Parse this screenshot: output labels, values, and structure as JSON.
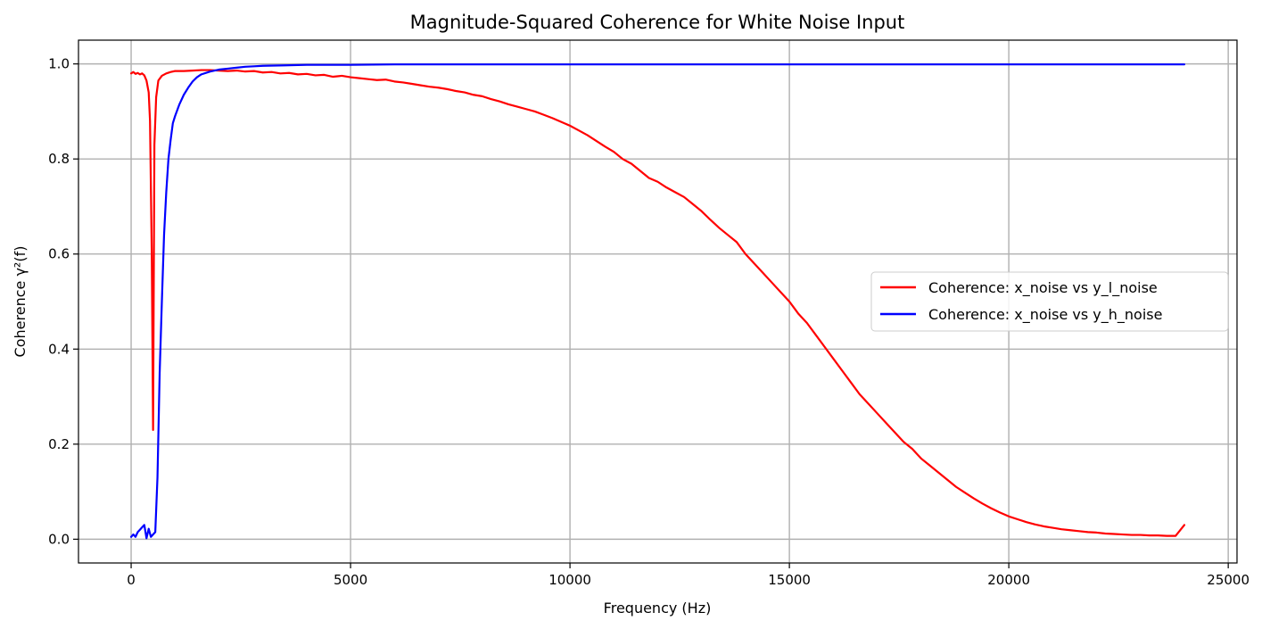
{
  "chart_data": {
    "type": "line",
    "title": "Magnitude-Squared Coherence for White Noise Input",
    "xlabel": "Frequency (Hz)",
    "ylabel": "Coherence γ²(f)",
    "xlim": [
      -1200,
      25200
    ],
    "ylim": [
      -0.05,
      1.05
    ],
    "xticks": [
      0,
      5000,
      10000,
      15000,
      20000,
      25000
    ],
    "xtick_labels": [
      "0",
      "5000",
      "10000",
      "15000",
      "20000",
      "25000"
    ],
    "yticks": [
      0.0,
      0.2,
      0.4,
      0.6,
      0.8,
      1.0
    ],
    "ytick_labels": [
      "0.0",
      "0.2",
      "0.4",
      "0.6",
      "0.8",
      "1.0"
    ],
    "grid": true,
    "legend_position": "center-right",
    "series": [
      {
        "name": "Coherence: x_noise vs y_l_noise",
        "color": "#ff0000",
        "points": [
          [
            0,
            0.98
          ],
          [
            50,
            0.983
          ],
          [
            100,
            0.979
          ],
          [
            150,
            0.981
          ],
          [
            200,
            0.978
          ],
          [
            250,
            0.98
          ],
          [
            300,
            0.976
          ],
          [
            350,
            0.965
          ],
          [
            400,
            0.94
          ],
          [
            430,
            0.88
          ],
          [
            470,
            0.6
          ],
          [
            500,
            0.23
          ],
          [
            530,
            0.83
          ],
          [
            570,
            0.93
          ],
          [
            620,
            0.965
          ],
          [
            700,
            0.975
          ],
          [
            800,
            0.98
          ],
          [
            900,
            0.983
          ],
          [
            1000,
            0.985
          ],
          [
            1200,
            0.985
          ],
          [
            1400,
            0.986
          ],
          [
            1600,
            0.987
          ],
          [
            1800,
            0.987
          ],
          [
            2000,
            0.986
          ],
          [
            2200,
            0.985
          ],
          [
            2400,
            0.986
          ],
          [
            2600,
            0.984
          ],
          [
            2800,
            0.985
          ],
          [
            3000,
            0.982
          ],
          [
            3200,
            0.983
          ],
          [
            3400,
            0.98
          ],
          [
            3600,
            0.981
          ],
          [
            3800,
            0.978
          ],
          [
            4000,
            0.979
          ],
          [
            4200,
            0.976
          ],
          [
            4400,
            0.977
          ],
          [
            4600,
            0.973
          ],
          [
            4800,
            0.975
          ],
          [
            5000,
            0.972
          ],
          [
            5200,
            0.97
          ],
          [
            5400,
            0.968
          ],
          [
            5600,
            0.966
          ],
          [
            5800,
            0.967
          ],
          [
            6000,
            0.963
          ],
          [
            6200,
            0.961
          ],
          [
            6400,
            0.958
          ],
          [
            6600,
            0.955
          ],
          [
            6800,
            0.952
          ],
          [
            7000,
            0.95
          ],
          [
            7200,
            0.947
          ],
          [
            7400,
            0.943
          ],
          [
            7600,
            0.94
          ],
          [
            7800,
            0.935
          ],
          [
            8000,
            0.932
          ],
          [
            8200,
            0.926
          ],
          [
            8400,
            0.921
          ],
          [
            8600,
            0.915
          ],
          [
            8800,
            0.91
          ],
          [
            9000,
            0.905
          ],
          [
            9200,
            0.9
          ],
          [
            9400,
            0.893
          ],
          [
            9600,
            0.886
          ],
          [
            9800,
            0.878
          ],
          [
            10000,
            0.87
          ],
          [
            10200,
            0.86
          ],
          [
            10400,
            0.85
          ],
          [
            10600,
            0.838
          ],
          [
            10800,
            0.826
          ],
          [
            11000,
            0.815
          ],
          [
            11200,
            0.8
          ],
          [
            11400,
            0.79
          ],
          [
            11600,
            0.775
          ],
          [
            11800,
            0.76
          ],
          [
            12000,
            0.752
          ],
          [
            12200,
            0.74
          ],
          [
            12400,
            0.73
          ],
          [
            12600,
            0.72
          ],
          [
            12800,
            0.705
          ],
          [
            13000,
            0.69
          ],
          [
            13200,
            0.672
          ],
          [
            13400,
            0.655
          ],
          [
            13600,
            0.64
          ],
          [
            13800,
            0.625
          ],
          [
            14000,
            0.6
          ],
          [
            14200,
            0.58
          ],
          [
            14400,
            0.56
          ],
          [
            14600,
            0.54
          ],
          [
            14800,
            0.52
          ],
          [
            15000,
            0.5
          ],
          [
            15200,
            0.475
          ],
          [
            15400,
            0.455
          ],
          [
            15600,
            0.43
          ],
          [
            15800,
            0.405
          ],
          [
            16000,
            0.38
          ],
          [
            16200,
            0.355
          ],
          [
            16400,
            0.33
          ],
          [
            16600,
            0.305
          ],
          [
            16800,
            0.285
          ],
          [
            17000,
            0.265
          ],
          [
            17200,
            0.245
          ],
          [
            17400,
            0.225
          ],
          [
            17600,
            0.205
          ],
          [
            17800,
            0.19
          ],
          [
            18000,
            0.17
          ],
          [
            18200,
            0.155
          ],
          [
            18400,
            0.14
          ],
          [
            18600,
            0.125
          ],
          [
            18800,
            0.11
          ],
          [
            19000,
            0.098
          ],
          [
            19200,
            0.086
          ],
          [
            19400,
            0.075
          ],
          [
            19600,
            0.065
          ],
          [
            19800,
            0.056
          ],
          [
            20000,
            0.048
          ],
          [
            20200,
            0.042
          ],
          [
            20400,
            0.036
          ],
          [
            20600,
            0.031
          ],
          [
            20800,
            0.027
          ],
          [
            21000,
            0.024
          ],
          [
            21200,
            0.021
          ],
          [
            21400,
            0.019
          ],
          [
            21600,
            0.017
          ],
          [
            21800,
            0.015
          ],
          [
            22000,
            0.014
          ],
          [
            22200,
            0.012
          ],
          [
            22400,
            0.011
          ],
          [
            22600,
            0.01
          ],
          [
            22800,
            0.009
          ],
          [
            23000,
            0.009
          ],
          [
            23200,
            0.008
          ],
          [
            23400,
            0.008
          ],
          [
            23600,
            0.007
          ],
          [
            23800,
            0.007
          ],
          [
            24000,
            0.03
          ]
        ]
      },
      {
        "name": "Coherence: x_noise vs y_h_noise",
        "color": "#0000ff",
        "points": [
          [
            0,
            0.005
          ],
          [
            50,
            0.01
          ],
          [
            100,
            0.005
          ],
          [
            150,
            0.015
          ],
          [
            200,
            0.02
          ],
          [
            250,
            0.025
          ],
          [
            300,
            0.03
          ],
          [
            350,
            0.002
          ],
          [
            400,
            0.022
          ],
          [
            450,
            0.005
          ],
          [
            500,
            0.01
          ],
          [
            550,
            0.015
          ],
          [
            600,
            0.13
          ],
          [
            650,
            0.35
          ],
          [
            700,
            0.5
          ],
          [
            750,
            0.64
          ],
          [
            800,
            0.73
          ],
          [
            850,
            0.8
          ],
          [
            900,
            0.84
          ],
          [
            950,
            0.875
          ],
          [
            1000,
            0.89
          ],
          [
            1100,
            0.915
          ],
          [
            1200,
            0.935
          ],
          [
            1300,
            0.95
          ],
          [
            1400,
            0.963
          ],
          [
            1500,
            0.972
          ],
          [
            1600,
            0.978
          ],
          [
            1800,
            0.984
          ],
          [
            2000,
            0.988
          ],
          [
            2200,
            0.99
          ],
          [
            2400,
            0.992
          ],
          [
            2600,
            0.994
          ],
          [
            2800,
            0.995
          ],
          [
            3000,
            0.996
          ],
          [
            3500,
            0.997
          ],
          [
            4000,
            0.998
          ],
          [
            5000,
            0.998
          ],
          [
            6000,
            0.999
          ],
          [
            8000,
            0.999
          ],
          [
            10000,
            0.999
          ],
          [
            15000,
            0.999
          ],
          [
            20000,
            0.999
          ],
          [
            24000,
            0.999
          ]
        ]
      }
    ]
  }
}
